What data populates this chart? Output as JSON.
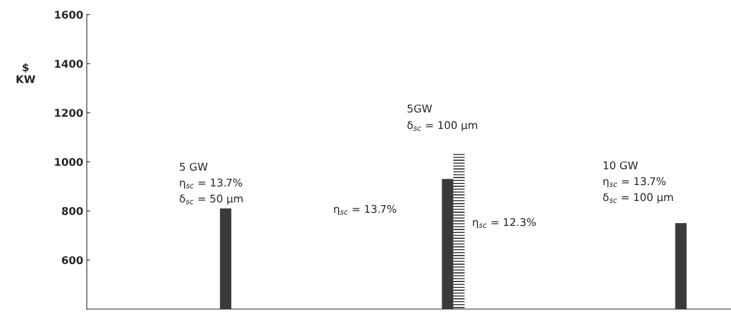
{
  "chart_data": {
    "type": "bar",
    "ylabel": "$\nKW",
    "categories": [
      null,
      null,
      null
    ],
    "series": [
      {
        "color": "#3a3a3a",
        "values": [
          810,
          930,
          750
        ]
      },
      {
        "color": "#1a1a1a",
        "values": [
          null,
          1035,
          null
        ]
      }
    ],
    "ylim": [
      400,
      1600
    ],
    "yticks": [
      600,
      800,
      1000,
      1200,
      1400,
      1600
    ],
    "grid": false,
    "legend": false,
    "annotations": [
      "5 GW",
      "η$_{sc}$ = 13.7%",
      "δ$_{sc}$ = 50 μm",
      "5GW",
      "δ$_{sc}$ = 100 μm",
      "η$_{sc}$ = 13.7%",
      "η$_{sc}$ = 12.3%",
      "10 GW",
      "η$_{sc}$ = 13.7%",
      "δ$_{sc}$ = 100 μm"
    ]
  }
}
